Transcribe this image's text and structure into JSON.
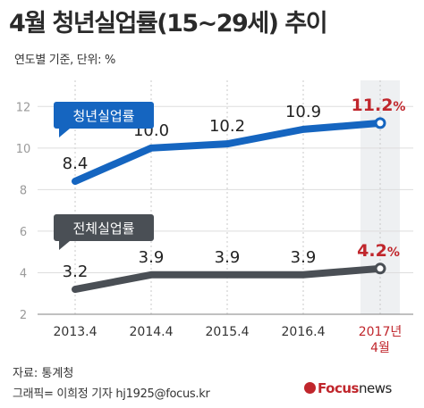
{
  "header": {
    "title": "4월 청년실업률(15~29세) 추이",
    "subtitle": "연도별 기준, 단위: %"
  },
  "footer": {
    "source": "자료: 통계청",
    "credit": "그래픽= 이희정 기자 hj1925@focus.kr",
    "brand_focus": "Focus",
    "brand_news": "news",
    "brand_color": "#c0262c"
  },
  "chart_data": {
    "type": "line",
    "categories": [
      "2013.4",
      "2014.4",
      "2015.4",
      "2016.4",
      "2017년 4월"
    ],
    "ylim": [
      2,
      12
    ],
    "yticks": [
      2,
      4,
      6,
      8,
      10,
      12
    ],
    "grid": true,
    "highlight_color": "#c0262c",
    "series": [
      {
        "name": "청년실업률",
        "color": "#1565c0",
        "values": [
          8.4,
          10.0,
          10.2,
          10.9,
          11.2
        ],
        "labels": [
          "8.4",
          "10.0",
          "10.2",
          "10.9",
          "11.2%"
        ]
      },
      {
        "name": "전체실업률",
        "color": "#4a4f55",
        "values": [
          3.2,
          3.9,
          3.9,
          3.9,
          4.2
        ],
        "labels": [
          "3.2",
          "3.9",
          "3.9",
          "3.9",
          "4.2%"
        ]
      }
    ]
  }
}
